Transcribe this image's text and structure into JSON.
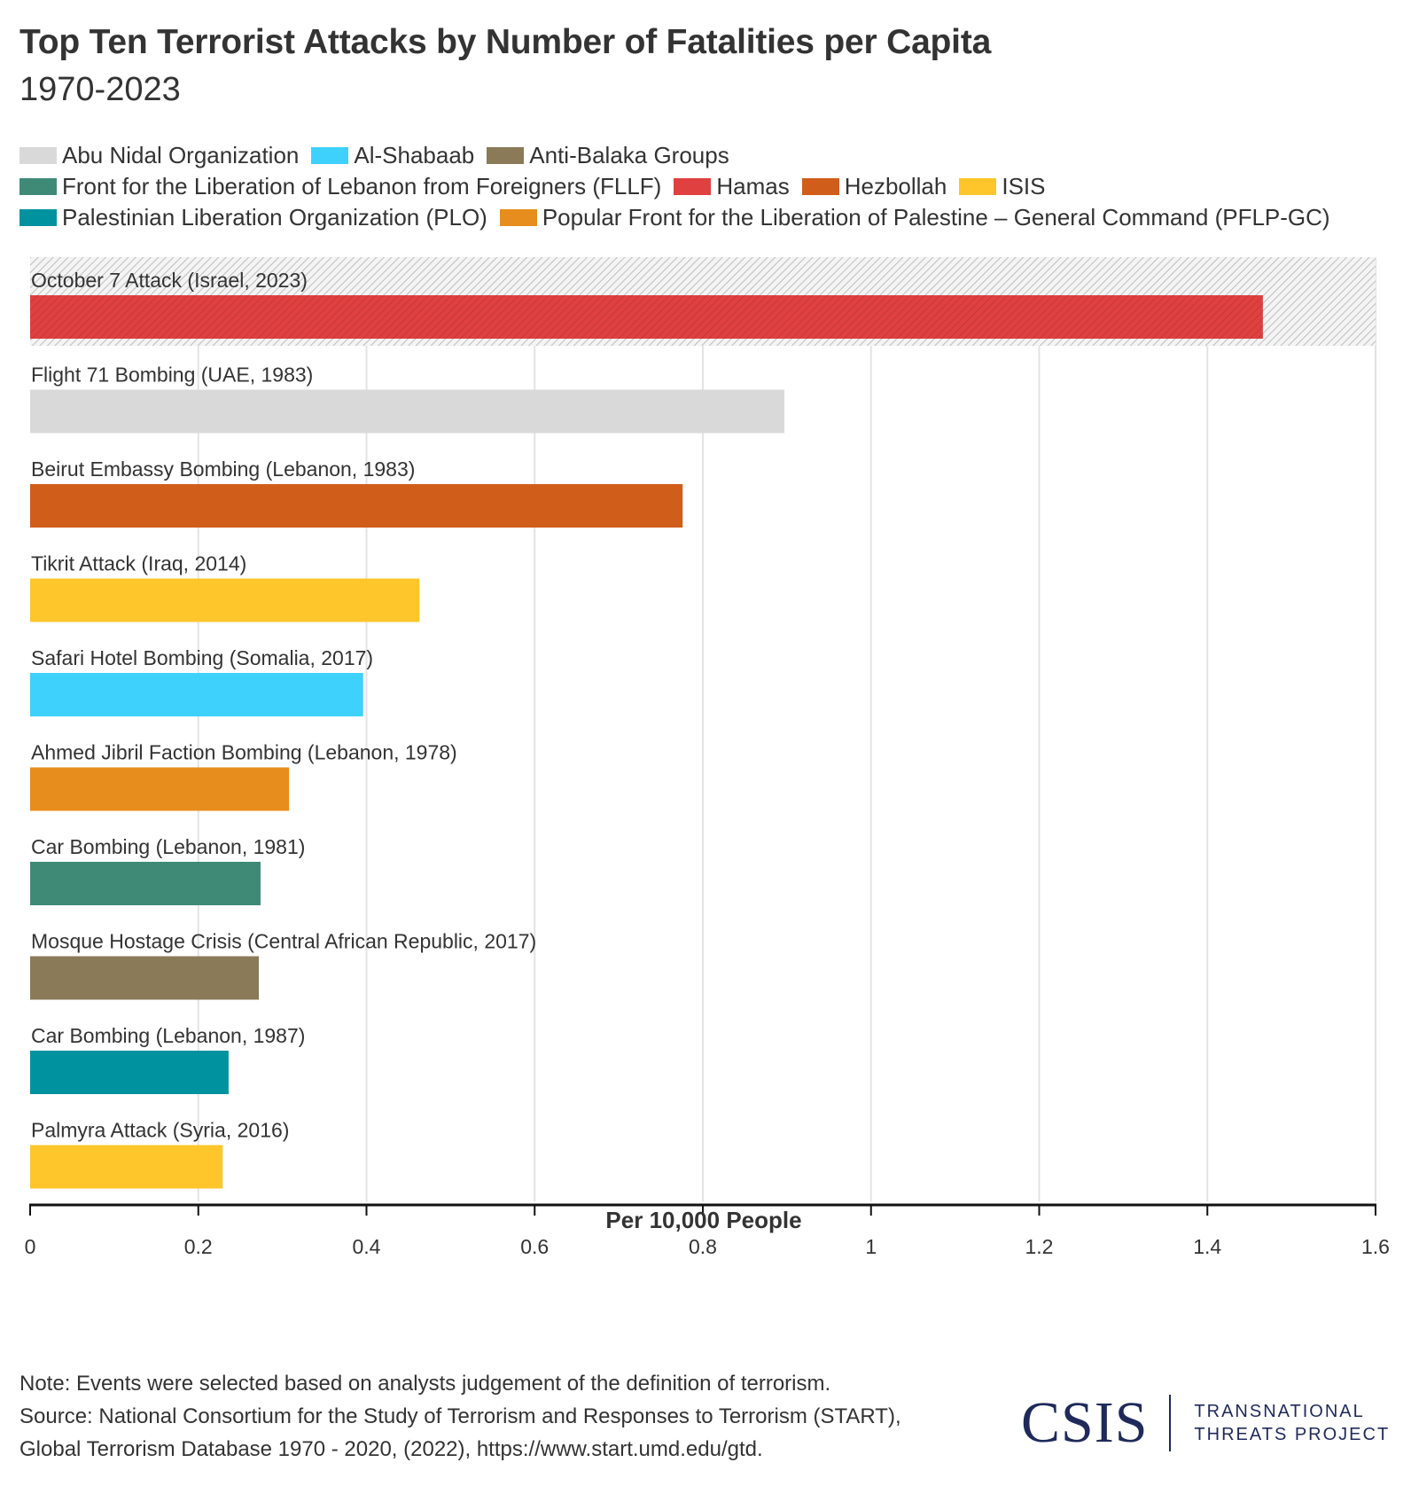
{
  "header": {
    "title": "Top Ten Terrorist Attacks by Number of Fatalities per Capita",
    "subtitle": "1970-2023"
  },
  "legend": {
    "rows": [
      [
        {
          "label": "Abu Nidal Organization",
          "color": "#d9d9d9"
        },
        {
          "label": "Al-Shabaab",
          "color": "#3dd1fb"
        },
        {
          "label": "Anti-Balaka Groups",
          "color": "#8a7a58"
        }
      ],
      [
        {
          "label": "Front for the Liberation of Lebanon from Foreigners (FLLF)",
          "color": "#3f8a77"
        },
        {
          "label": "Hamas",
          "color": "#e04040"
        },
        {
          "label": "Hezbollah",
          "color": "#d15d1b"
        },
        {
          "label": "ISIS",
          "color": "#fec62a"
        }
      ],
      [
        {
          "label": "Palestinian Liberation Organization (PLO)",
          "color": "#00929f"
        },
        {
          "label": "Popular Front for the Liberation of Palestine – General Command (PFLP-GC)",
          "color": "#e78d1e"
        }
      ]
    ]
  },
  "chart_data": {
    "type": "bar",
    "orientation": "horizontal",
    "title": "Top Ten Terrorist Attacks by Number of Fatalities per Capita",
    "subtitle": "1970-2023",
    "xlabel": "Per 10,000 People",
    "ylabel": "",
    "xlim": [
      0,
      1.6
    ],
    "xticks": [
      0,
      0.2,
      0.4,
      0.6,
      0.8,
      1,
      1.2,
      1.4,
      1.6
    ],
    "xtick_labels": [
      "0",
      "0.2",
      "0.4",
      "0.6",
      "0.8",
      "1",
      "1.2",
      "1.4",
      "1.6"
    ],
    "grid": "vertical",
    "legend_position": "top",
    "highlighted_category": "October 7 Attack (Israel, 2023)",
    "categories": [
      "October 7 Attack (Israel, 2023)",
      "Flight 71 Bombing (UAE, 1983)",
      "Beirut Embassy Bombing (Lebanon, 1983)",
      "Tikrit Attack (Iraq, 2014)",
      "Safari Hotel Bombing (Somalia, 2017)",
      "Ahmed Jibril Faction Bombing (Lebanon, 1978)",
      "Car Bombing (Lebanon, 1981)",
      "Mosque Hostage Crisis (Central African Republic, 2017)",
      "Car Bombing (Lebanon, 1987)",
      "Palmyra Attack (Syria, 2016)"
    ],
    "values": [
      1.466,
      0.897,
      0.776,
      0.463,
      0.396,
      0.308,
      0.274,
      0.272,
      0.236,
      0.229
    ],
    "groups": [
      "Hamas",
      "Abu Nidal Organization",
      "Hezbollah",
      "ISIS",
      "Al-Shabaab",
      "Popular Front for the Liberation of Palestine – General Command (PFLP-GC)",
      "Front for the Liberation of Lebanon from Foreigners (FLLF)",
      "Anti-Balaka Groups",
      "Palestinian Liberation Organization (PLO)",
      "ISIS"
    ]
  },
  "footer": {
    "note": "Note: Events were selected based on analysts judgement of the definition of terrorism.",
    "source_line1": "Source: National Consortium for the Study of Terrorism and Responses to Terrorism (START),",
    "source_line2": "Global Terrorism Database 1970 - 2020, (2022), https://www.start.umd.edu/gtd."
  },
  "logo": {
    "mark": "CSIS",
    "line1": "TRANSNATIONAL",
    "line2": "THREATS PROJECT"
  }
}
